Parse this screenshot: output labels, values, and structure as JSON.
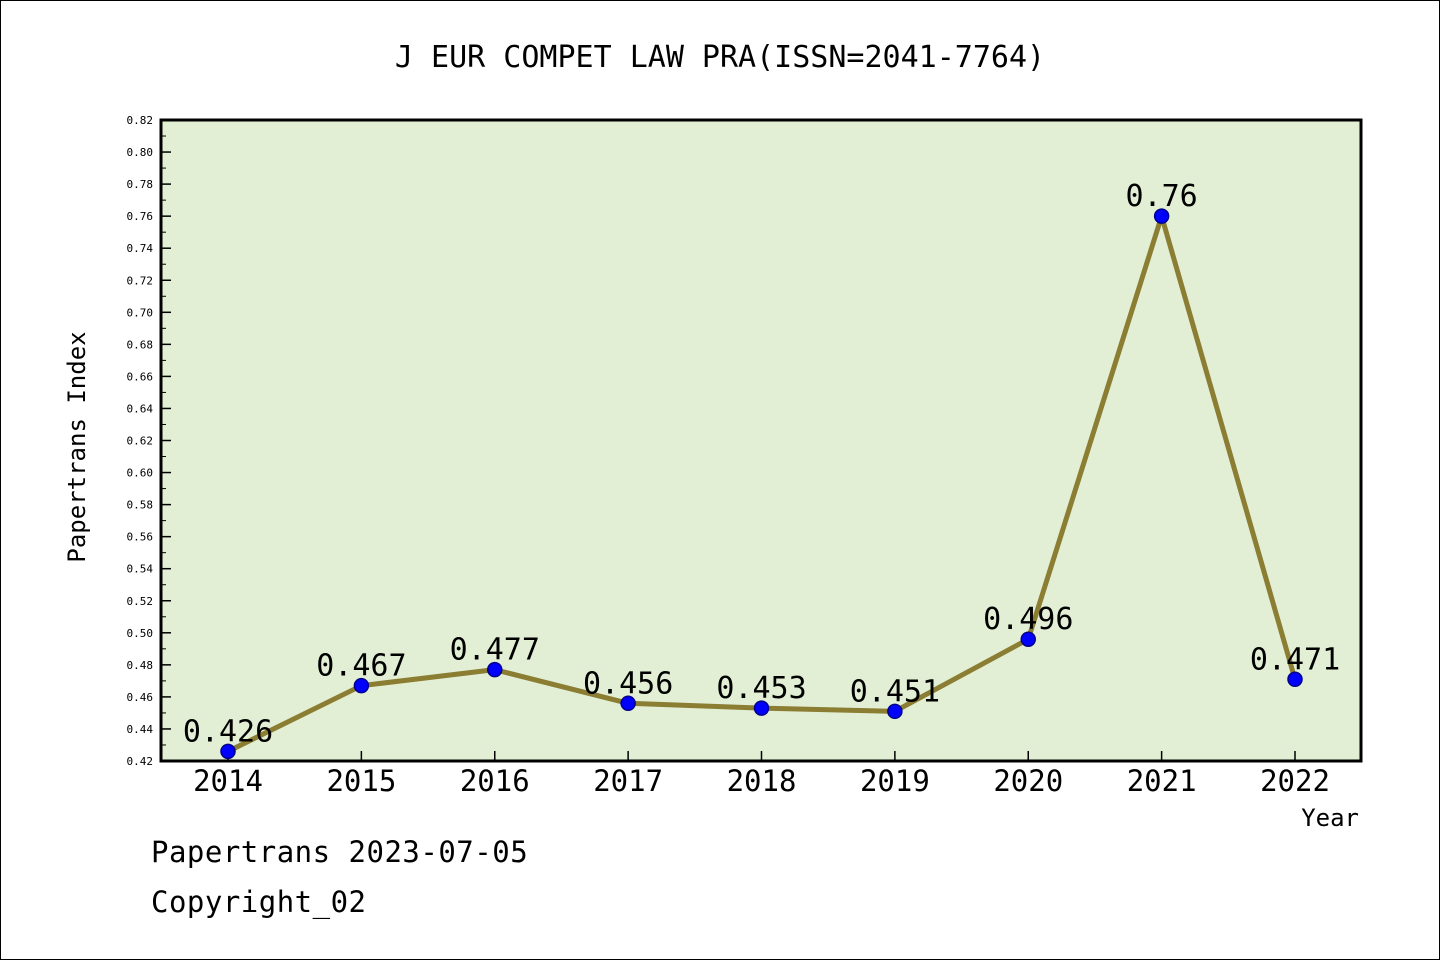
{
  "chart_data": {
    "type": "line",
    "title": "J EUR COMPET LAW PRA(ISSN=2041-7764)",
    "xlabel": "Year",
    "ylabel": "Papertrans Index",
    "categories": [
      "2014",
      "2015",
      "2016",
      "2017",
      "2018",
      "2019",
      "2020",
      "2021",
      "2022"
    ],
    "values": [
      0.426,
      0.467,
      0.477,
      0.456,
      0.453,
      0.451,
      0.496,
      0.76,
      0.471
    ],
    "data_labels": [
      "0.426",
      "0.467",
      "0.477",
      "0.456",
      "0.453",
      "0.451",
      "0.496",
      "0.76",
      "0.471"
    ],
    "ylim": [
      0.42,
      0.82
    ],
    "yticks": [
      "0.42",
      "0.44",
      "0.46",
      "0.48",
      "0.50",
      "0.52",
      "0.54",
      "0.56",
      "0.58",
      "0.60",
      "0.62",
      "0.64",
      "0.66",
      "0.68",
      "0.70",
      "0.72",
      "0.74",
      "0.76",
      "0.78",
      "0.80",
      "0.82"
    ],
    "grid": false,
    "colors": {
      "plot_background": "#e2efd5",
      "line": "#8b7d32",
      "marker_fill": "#0000ff",
      "marker_stroke": "#00008b"
    }
  },
  "footer": {
    "date_line": "Papertrans 2023-07-05",
    "copyright": "Copyright_02"
  }
}
